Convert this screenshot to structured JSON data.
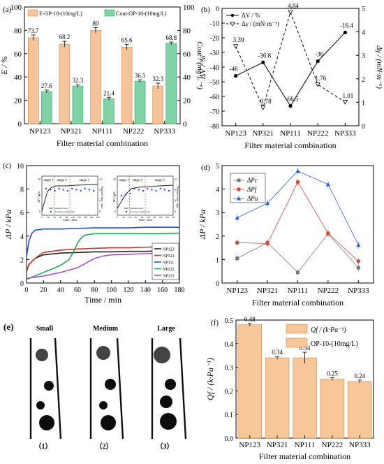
{
  "chart_data": [
    {
      "panel": "(a)",
      "type": "bar",
      "categories": [
        "NP123",
        "NP321",
        "NP111",
        "NP222",
        "NP333"
      ],
      "series": [
        {
          "name": "E-OP-10-(10mg/L)",
          "values": [
            73.7,
            68.2,
            80,
            65.6,
            32.3
          ],
          "color": "#f5c49a",
          "axis": "left"
        },
        {
          "name": "Cout-OP-10-(10mg/L)",
          "values": [
            27.6,
            32.3,
            21.4,
            36.5,
            68.8
          ],
          "color": "#7fd3a6",
          "axis": "right"
        }
      ],
      "labels": {
        "e": [
          "73.7",
          "68.2",
          "80",
          "65.6",
          "32.3"
        ],
        "c": [
          "27.6",
          "32.3",
          "21.4",
          "36.5",
          "68.8"
        ]
      },
      "xlabel": "Filter material combination",
      "ylabel": "E / %",
      "y2label": "Cout / (mg·L⁻¹)",
      "ylim": [
        0,
        100
      ],
      "y2lim": [
        0,
        100
      ],
      "ticks": [
        "0",
        "20",
        "40",
        "60",
        "80",
        "100"
      ],
      "legend_position": "top"
    },
    {
      "panel": "(b)",
      "type": "line",
      "categories": [
        "NP123",
        "NP321",
        "NP111",
        "NP222",
        "NP333"
      ],
      "series": [
        {
          "name": "ΔV / %",
          "values": [
            -46,
            -36.8,
            -66.5,
            -36,
            -16.4
          ],
          "axis": "left",
          "style": "solid"
        },
        {
          "name": "Δγ / (mN·m⁻¹)",
          "values": [
            3.39,
            0.78,
            4.84,
            1.76,
            1.01
          ],
          "axis": "right",
          "style": "dashed"
        }
      ],
      "labels": {
        "v": [
          "-46",
          "-36.8",
          "-66.5",
          "-36",
          "-16.4"
        ],
        "g": [
          "3.39",
          "0.78",
          "4.84",
          "1.76",
          "1.01"
        ]
      },
      "xlabel": "Filter material combination",
      "ylabel": "ΔV / %",
      "y2label": "Δγ / (mN·m⁻¹)",
      "ylim": [
        -80,
        0
      ],
      "y2lim": [
        0,
        5
      ],
      "ticks": [
        "-80",
        "-70",
        "-60",
        "-50",
        "-40",
        "-30",
        "-20",
        "-10",
        "0"
      ],
      "ticks2": [
        "0",
        "1",
        "2",
        "3",
        "4",
        "5"
      ],
      "legend_position": "top-left"
    },
    {
      "panel": "(c)",
      "type": "line",
      "xlabel": "Time / min",
      "ylabel": "ΔP / kPa",
      "xlim": [
        0,
        180
      ],
      "ylim": [
        0,
        10
      ],
      "xticks": [
        "0",
        "20",
        "40",
        "60",
        "80",
        "100",
        "120",
        "140",
        "160",
        "180"
      ],
      "yticks": [
        "0",
        "2",
        "4",
        "6",
        "8",
        "10"
      ],
      "series": [
        {
          "name": "NP123",
          "color": "#222222",
          "x": [
            0,
            3,
            10,
            20,
            40,
            60,
            80,
            100,
            120,
            140,
            160,
            180
          ],
          "y": [
            1.0,
            1.6,
            2.1,
            2.4,
            2.55,
            2.6,
            2.65,
            2.65,
            2.7,
            2.7,
            2.75,
            2.75
          ]
        },
        {
          "name": "NP321",
          "color": "#c0392b",
          "x": [
            0,
            3,
            10,
            20,
            40,
            60,
            80,
            100,
            120,
            140,
            160,
            180
          ],
          "y": [
            1.1,
            1.6,
            2.1,
            2.6,
            2.8,
            2.9,
            2.95,
            3.0,
            3.0,
            3.05,
            3.1,
            3.1
          ]
        },
        {
          "name": "NP111",
          "color": "#1f4fd6",
          "x": [
            0,
            3,
            6,
            10,
            15,
            20,
            40,
            60,
            80,
            100,
            120,
            140,
            160,
            180
          ],
          "y": [
            2.3,
            3.6,
            4.2,
            4.5,
            4.55,
            4.6,
            4.6,
            4.65,
            4.7,
            4.7,
            4.7,
            4.75,
            4.75,
            4.75
          ]
        },
        {
          "name": "NP222",
          "color": "#27a85a",
          "x": [
            0,
            10,
            20,
            30,
            40,
            50,
            55,
            60,
            65,
            70,
            80,
            100,
            120,
            140,
            160,
            180
          ],
          "y": [
            0.3,
            0.6,
            0.9,
            1.2,
            1.5,
            2.0,
            2.6,
            3.4,
            3.9,
            4.1,
            4.2,
            4.2,
            4.2,
            4.2,
            4.2,
            4.25
          ]
        },
        {
          "name": "NP333",
          "color": "#a34fd6",
          "x": [
            0,
            20,
            40,
            60,
            70,
            80,
            90,
            100,
            120,
            140,
            160,
            180
          ],
          "y": [
            0.4,
            0.6,
            0.9,
            1.3,
            1.7,
            2.1,
            2.3,
            2.4,
            2.45,
            2.5,
            2.55,
            2.6
          ]
        }
      ],
      "inset_labels": {
        "stage1": "stage 1",
        "stage2": "stage 2",
        "stage3": "stage 3",
        "ylab": "ΔP / kPa",
        "y2lab": "Particle size / μm",
        "xlab": "Time / min",
        "ticks_y_left": [
          "6",
          "8",
          "10"
        ],
        "ticks_y_right": [
          "0",
          "4",
          "8",
          "12"
        ],
        "ticks_x": [
          "0",
          "20",
          "40",
          "60",
          "80",
          "100",
          "120",
          "140",
          "160",
          "180"
        ],
        "leg1": "pressure drop",
        "leg2": "Average particle size"
      },
      "legend_position": "bottom-right"
    },
    {
      "panel": "(d)",
      "type": "line",
      "categories": [
        "NP123",
        "NP321",
        "NP111",
        "NP222",
        "NP333"
      ],
      "series": [
        {
          "name": "ΔPc",
          "values": [
            1.05,
            1.72,
            0.45,
            2.1,
            0.65
          ],
          "color": "#777777",
          "marker": "square"
        },
        {
          "name": "ΔPf",
          "values": [
            1.72,
            1.68,
            4.3,
            2.12,
            0.93
          ],
          "color": "#d24a3a",
          "marker": "circle"
        },
        {
          "name": "ΔPu",
          "values": [
            2.78,
            3.4,
            4.77,
            4.2,
            1.62
          ],
          "color": "#2a63d8",
          "marker": "triangle"
        }
      ],
      "xlabel": "Filter material combination",
      "ylabel": "ΔP / kPa",
      "ylim": [
        0,
        5
      ],
      "ticks": [
        "0",
        "1",
        "2",
        "3",
        "4",
        "5"
      ],
      "legend_position": "top-left"
    },
    {
      "panel": "(e)",
      "type": "diagram",
      "labels": [
        "Small",
        "Medium",
        "Large"
      ],
      "numbers": [
        "（1）",
        "（2）",
        "（3）"
      ]
    },
    {
      "panel": "(f)",
      "type": "bar",
      "categories": [
        "NP123",
        "NP321",
        "NP111",
        "NP222",
        "NP333"
      ],
      "values": [
        0.48,
        0.34,
        0.34,
        0.25,
        0.24
      ],
      "labels": [
        "0.48",
        "0.34",
        "0.34",
        "0.25",
        "0.24"
      ],
      "series_name": "OP-10-(10mg/L)",
      "legend_top": "Qf / (k·Pa⁻¹)",
      "xlabel": "Filter material combination",
      "ylabel": "Qf / (k·Pa⁻¹)",
      "ylim": [
        0,
        0.5
      ],
      "ticks": [
        "0.0",
        "0.1",
        "0.2",
        "0.3",
        "0.4",
        "0.5"
      ],
      "legend_position": "top-right",
      "color": "#f7c79a"
    }
  ]
}
